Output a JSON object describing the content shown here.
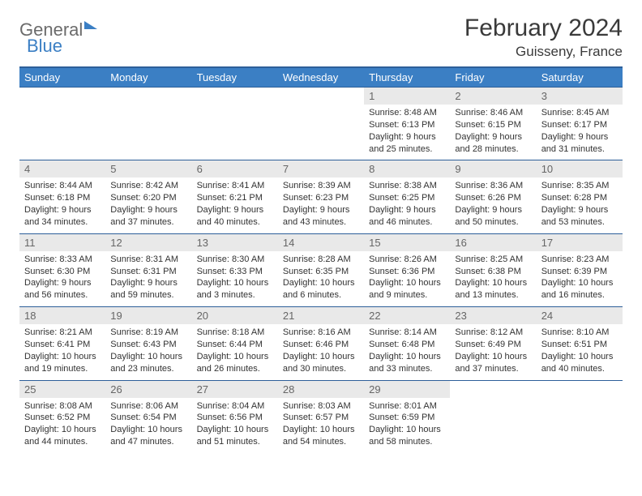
{
  "logo": {
    "part1": "General",
    "part2": "Blue"
  },
  "title": "February 2024",
  "location": "Guisseny, France",
  "colors": {
    "header_bg": "#3b7fc4",
    "header_border": "#2d5f99",
    "daynum_bg": "#e9e9e9",
    "text": "#333333"
  },
  "weekdays": [
    "Sunday",
    "Monday",
    "Tuesday",
    "Wednesday",
    "Thursday",
    "Friday",
    "Saturday"
  ],
  "weeks": [
    [
      null,
      null,
      null,
      null,
      {
        "n": "1",
        "sunrise": "8:48 AM",
        "sunset": "6:13 PM",
        "daylight": "9 hours and 25 minutes."
      },
      {
        "n": "2",
        "sunrise": "8:46 AM",
        "sunset": "6:15 PM",
        "daylight": "9 hours and 28 minutes."
      },
      {
        "n": "3",
        "sunrise": "8:45 AM",
        "sunset": "6:17 PM",
        "daylight": "9 hours and 31 minutes."
      }
    ],
    [
      {
        "n": "4",
        "sunrise": "8:44 AM",
        "sunset": "6:18 PM",
        "daylight": "9 hours and 34 minutes."
      },
      {
        "n": "5",
        "sunrise": "8:42 AM",
        "sunset": "6:20 PM",
        "daylight": "9 hours and 37 minutes."
      },
      {
        "n": "6",
        "sunrise": "8:41 AM",
        "sunset": "6:21 PM",
        "daylight": "9 hours and 40 minutes."
      },
      {
        "n": "7",
        "sunrise": "8:39 AM",
        "sunset": "6:23 PM",
        "daylight": "9 hours and 43 minutes."
      },
      {
        "n": "8",
        "sunrise": "8:38 AM",
        "sunset": "6:25 PM",
        "daylight": "9 hours and 46 minutes."
      },
      {
        "n": "9",
        "sunrise": "8:36 AM",
        "sunset": "6:26 PM",
        "daylight": "9 hours and 50 minutes."
      },
      {
        "n": "10",
        "sunrise": "8:35 AM",
        "sunset": "6:28 PM",
        "daylight": "9 hours and 53 minutes."
      }
    ],
    [
      {
        "n": "11",
        "sunrise": "8:33 AM",
        "sunset": "6:30 PM",
        "daylight": "9 hours and 56 minutes."
      },
      {
        "n": "12",
        "sunrise": "8:31 AM",
        "sunset": "6:31 PM",
        "daylight": "9 hours and 59 minutes."
      },
      {
        "n": "13",
        "sunrise": "8:30 AM",
        "sunset": "6:33 PM",
        "daylight": "10 hours and 3 minutes."
      },
      {
        "n": "14",
        "sunrise": "8:28 AM",
        "sunset": "6:35 PM",
        "daylight": "10 hours and 6 minutes."
      },
      {
        "n": "15",
        "sunrise": "8:26 AM",
        "sunset": "6:36 PM",
        "daylight": "10 hours and 9 minutes."
      },
      {
        "n": "16",
        "sunrise": "8:25 AM",
        "sunset": "6:38 PM",
        "daylight": "10 hours and 13 minutes."
      },
      {
        "n": "17",
        "sunrise": "8:23 AM",
        "sunset": "6:39 PM",
        "daylight": "10 hours and 16 minutes."
      }
    ],
    [
      {
        "n": "18",
        "sunrise": "8:21 AM",
        "sunset": "6:41 PM",
        "daylight": "10 hours and 19 minutes."
      },
      {
        "n": "19",
        "sunrise": "8:19 AM",
        "sunset": "6:43 PM",
        "daylight": "10 hours and 23 minutes."
      },
      {
        "n": "20",
        "sunrise": "8:18 AM",
        "sunset": "6:44 PM",
        "daylight": "10 hours and 26 minutes."
      },
      {
        "n": "21",
        "sunrise": "8:16 AM",
        "sunset": "6:46 PM",
        "daylight": "10 hours and 30 minutes."
      },
      {
        "n": "22",
        "sunrise": "8:14 AM",
        "sunset": "6:48 PM",
        "daylight": "10 hours and 33 minutes."
      },
      {
        "n": "23",
        "sunrise": "8:12 AM",
        "sunset": "6:49 PM",
        "daylight": "10 hours and 37 minutes."
      },
      {
        "n": "24",
        "sunrise": "8:10 AM",
        "sunset": "6:51 PM",
        "daylight": "10 hours and 40 minutes."
      }
    ],
    [
      {
        "n": "25",
        "sunrise": "8:08 AM",
        "sunset": "6:52 PM",
        "daylight": "10 hours and 44 minutes."
      },
      {
        "n": "26",
        "sunrise": "8:06 AM",
        "sunset": "6:54 PM",
        "daylight": "10 hours and 47 minutes."
      },
      {
        "n": "27",
        "sunrise": "8:04 AM",
        "sunset": "6:56 PM",
        "daylight": "10 hours and 51 minutes."
      },
      {
        "n": "28",
        "sunrise": "8:03 AM",
        "sunset": "6:57 PM",
        "daylight": "10 hours and 54 minutes."
      },
      {
        "n": "29",
        "sunrise": "8:01 AM",
        "sunset": "6:59 PM",
        "daylight": "10 hours and 58 minutes."
      },
      null,
      null
    ]
  ]
}
